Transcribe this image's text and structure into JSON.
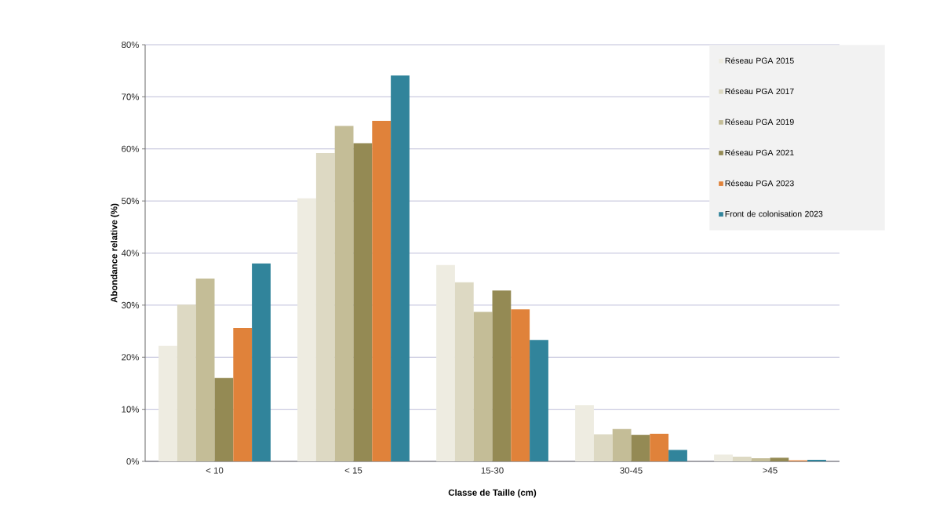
{
  "chart_data": {
    "type": "bar",
    "xlabel": "Classe de Taille (cm)",
    "ylabel": "Abondance relative (%)",
    "categories": [
      "< 10",
      "< 15",
      "15-30",
      "30-45",
      ">45"
    ],
    "series": [
      {
        "name": "Réseau PGA 2015",
        "color": "#eeece1",
        "values": [
          22.2,
          50.5,
          37.7,
          10.8,
          1.3
        ]
      },
      {
        "name": "Réseau PGA 2017",
        "color": "#ddd9c3",
        "values": [
          30.1,
          59.2,
          34.4,
          5.2,
          0.9
        ]
      },
      {
        "name": "Réseau PGA 2019",
        "color": "#c4bd97",
        "values": [
          35.1,
          64.4,
          28.7,
          6.2,
          0.6
        ]
      },
      {
        "name": "Réseau PGA 2021",
        "color": "#948a54",
        "values": [
          16.0,
          61.1,
          32.8,
          5.1,
          0.7
        ]
      },
      {
        "name": "Réseau PGA 2023",
        "color": "#e0823a",
        "values": [
          25.6,
          65.4,
          29.2,
          5.3,
          0.2
        ]
      },
      {
        "name": "Front de colonisation 2023",
        "color": "#31849b",
        "values": [
          38.0,
          74.1,
          23.3,
          2.2,
          0.3
        ]
      }
    ],
    "ylim": [
      0,
      80
    ],
    "yticks": [
      {
        "value": 0,
        "label": "0%"
      },
      {
        "value": 10,
        "label": "10%"
      },
      {
        "value": 20,
        "label": "20%"
      },
      {
        "value": 30,
        "label": "30%"
      },
      {
        "value": 40,
        "label": "40%"
      },
      {
        "value": 50,
        "label": "50%"
      },
      {
        "value": 60,
        "label": "60%"
      },
      {
        "value": 70,
        "label": "70%"
      },
      {
        "value": 80,
        "label": "80%"
      }
    ],
    "grid": "y",
    "legend": "top right"
  }
}
